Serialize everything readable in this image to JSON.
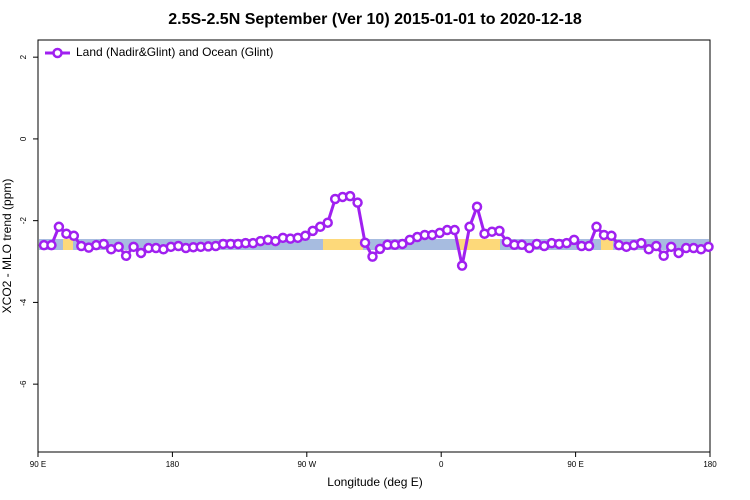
{
  "chart_data": {
    "type": "line",
    "title": "2.5S-2.5N September (Ver 10)   2015-01-01 to 2020-12-18",
    "x_label": "Longitude (deg E)",
    "y_label": "XCO2 - MLO trend (ppm)",
    "legend": "top-left",
    "x": [
      94,
      99,
      104,
      109,
      114,
      119,
      124,
      129,
      134,
      139,
      144,
      149,
      154,
      159,
      164,
      169,
      174,
      179,
      184,
      189,
      194,
      199,
      204,
      209,
      214,
      219,
      224,
      229,
      234,
      239,
      244,
      249,
      254,
      259,
      264,
      269,
      274,
      279,
      284,
      289,
      294,
      299,
      304,
      309,
      314,
      319,
      324,
      329,
      334,
      339,
      344,
      349,
      354,
      359,
      364,
      369,
      374,
      379,
      384,
      389,
      394,
      399,
      404,
      409,
      414,
      419,
      424,
      429,
      434,
      439,
      444,
      449,
      454,
      459,
      464,
      469,
      474,
      479,
      484,
      489,
      494,
      499,
      504,
      509,
      514,
      519,
      524,
      529,
      534,
      539
    ],
    "series": [
      {
        "name": "Land (Nadir&Glint) and Ocean (Glint)",
        "color": "#a020f0",
        "values": [
          -2.6,
          -2.6,
          -2.15,
          -2.32,
          -2.37,
          -2.62,
          -2.66,
          -2.6,
          -2.57,
          -2.7,
          -2.64,
          -2.86,
          -2.64,
          -2.79,
          -2.67,
          -2.67,
          -2.7,
          -2.64,
          -2.62,
          -2.67,
          -2.65,
          -2.64,
          -2.63,
          -2.62,
          -2.57,
          -2.57,
          -2.57,
          -2.55,
          -2.55,
          -2.5,
          -2.47,
          -2.5,
          -2.42,
          -2.44,
          -2.42,
          -2.37,
          -2.25,
          -2.15,
          -2.05,
          -1.47,
          -1.42,
          -1.4,
          -1.56,
          -2.54,
          -2.88,
          -2.69,
          -2.59,
          -2.59,
          -2.57,
          -2.47,
          -2.4,
          -2.35,
          -2.35,
          -2.3,
          -2.23,
          -2.23,
          -3.1,
          -2.15,
          -1.66,
          -2.32,
          -2.27,
          -2.25,
          -2.52,
          -2.59,
          -2.59,
          -2.67,
          -2.57,
          -2.62,
          -2.55,
          -2.57,
          -2.55,
          -2.47,
          -2.62,
          -2.62,
          -2.15,
          -2.35,
          -2.37,
          -2.6,
          -2.64,
          -2.6,
          -2.55,
          -2.7,
          -2.62,
          -2.86,
          -2.64,
          -2.79,
          -2.67,
          -2.67,
          -2.7,
          -2.64
        ]
      }
    ],
    "xlim": [
      90,
      540
    ],
    "xticks": [
      {
        "value": 90,
        "label": "90 E"
      },
      180,
      {
        "value": 270,
        "label": "90 W"
      },
      {
        "value": 360,
        "label": "0"
      },
      {
        "value": 450,
        "label": "90 E"
      },
      {
        "value": 540,
        "label": "180"
      }
    ],
    "ylim": [
      -7.66,
      2.42
    ],
    "yticks": [
      -6,
      -4,
      -2,
      0,
      2
    ]
  }
}
